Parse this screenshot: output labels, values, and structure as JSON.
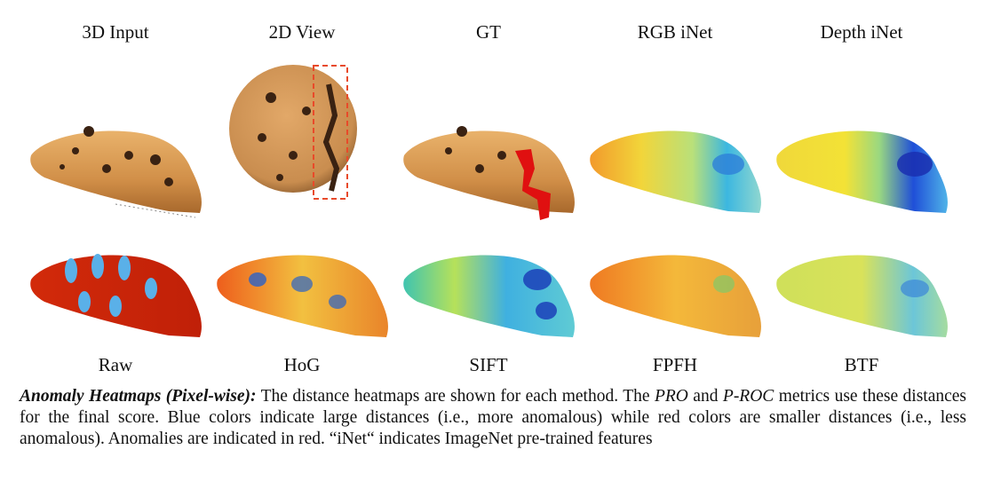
{
  "top_labels": [
    "3D Input",
    "2D View",
    "GT",
    "RGB iNet",
    "Depth iNet"
  ],
  "bottom_labels": [
    "Raw",
    "HoG",
    "SIFT",
    "FPFH",
    "BTF"
  ],
  "caption": {
    "title": "Anomaly Heatmaps (Pixel-wise):",
    "part1": " The distance heatmaps are shown for each method. The ",
    "pro": "PRO",
    "part2": " and ",
    "proc": "P-ROC",
    "part3": " metrics use these distances for the final score.  Blue colors indicate large distances (i.e., more anomalous) while red colors are smaller distances (i.e., less anomalous).  Anomalies are indicated in red.  “iNet“ indicates ImageNet pre-trained features"
  },
  "colors": {
    "cookie": "#d89a55",
    "cookie_dark": "#a86a30",
    "anomaly_red": "#e01010",
    "box_dash": "#e84a2a"
  }
}
